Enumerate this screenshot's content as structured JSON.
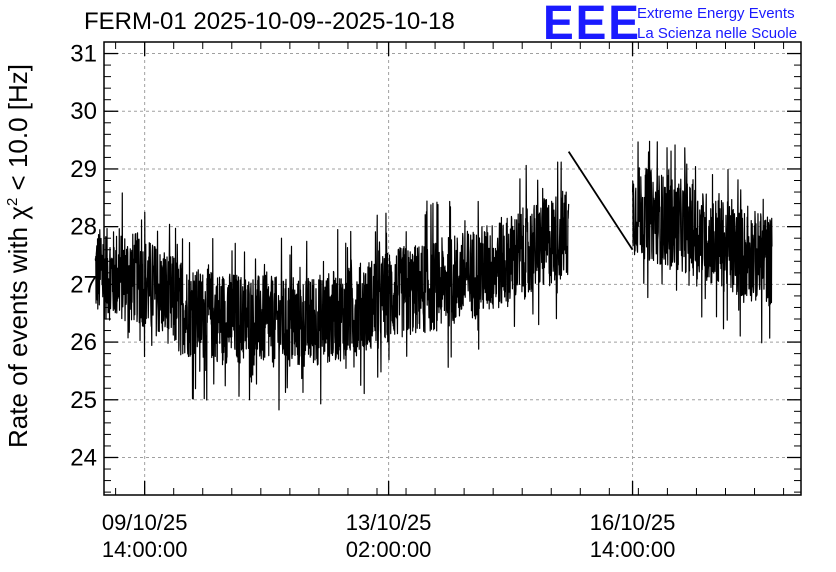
{
  "title": "FERM-01 2025-10-09--2025-10-18",
  "logo": {
    "mark": "EEE",
    "line1": "Extreme Energy Events",
    "line2": "La Scienza nelle Scuole"
  },
  "chart_data": {
    "type": "line",
    "title": "FERM-01 2025-10-09--2025-10-18",
    "xlabel": "",
    "ylabel": "Rate of events with χ² < 10.0 [Hz]",
    "ylabel_parts": {
      "pre": "Rate of events with χ",
      "sup": "2",
      "post": " < 10.0 [Hz]"
    },
    "x_axis_type": "datetime",
    "xlim": [
      "2025-10-09 00:00:00",
      "2025-10-19 00:00:00"
    ],
    "ylim": [
      23.35,
      31.2
    ],
    "yticks": [
      24,
      25,
      26,
      27,
      28,
      29,
      30,
      31
    ],
    "xticks": [
      {
        "date": "2025-10-09 14:00:00",
        "label_date": "09/10/25",
        "label_time": "14:00:00"
      },
      {
        "date": "2025-10-13 02:00:00",
        "label_date": "13/10/25",
        "label_time": "02:00:00"
      },
      {
        "date": "2025-10-16 14:00:00",
        "label_date": "16/10/25",
        "label_time": "14:00:00"
      }
    ],
    "grid": true,
    "line_color": "#000000",
    "trend": [
      {
        "x": "2025-10-08 21:00:00",
        "y": 27.2
      },
      {
        "x": "2025-10-09 12:00:00",
        "y": 27.1
      },
      {
        "x": "2025-10-10 06:00:00",
        "y": 26.5
      },
      {
        "x": "2025-10-11 00:00:00",
        "y": 26.4
      },
      {
        "x": "2025-10-11 18:00:00",
        "y": 26.3
      },
      {
        "x": "2025-10-12 12:00:00",
        "y": 26.5
      },
      {
        "x": "2025-10-13 02:00:00",
        "y": 26.8
      },
      {
        "x": "2025-10-13 20:00:00",
        "y": 27.0
      },
      {
        "x": "2025-10-14 14:00:00",
        "y": 27.3
      },
      {
        "x": "2025-10-15 08:00:00",
        "y": 27.7
      },
      {
        "x": "2025-10-15 16:00:00",
        "y": 27.9
      },
      {
        "x": "2025-10-16 14:00:00",
        "y": 28.3
      },
      {
        "x": "2025-10-17 08:00:00",
        "y": 28.0
      },
      {
        "x": "2025-10-18 00:00:00",
        "y": 27.6
      },
      {
        "x": "2025-10-18 14:00:00",
        "y": 27.4
      }
    ],
    "noise_amplitude_hz": 0.8,
    "segments": [
      {
        "start": "2025-10-08 21:00:00",
        "end": "2025-10-15 16:00:00"
      },
      {
        "start": "2025-10-16 14:00:00",
        "end": "2025-10-18 14:00:00"
      }
    ],
    "gap_line": [
      {
        "x": "2025-10-15 16:00:00",
        "y": 29.3
      },
      {
        "x": "2025-10-16 14:00:00",
        "y": 27.6
      }
    ]
  }
}
